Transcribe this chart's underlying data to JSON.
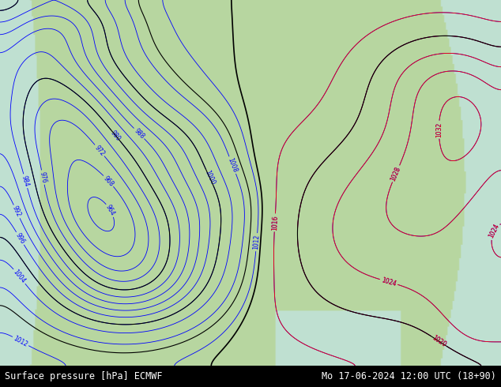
{
  "title_left": "Surface pressure [hPa] ECMWF",
  "title_right": "Mo 17-06-2024 12:00 UTC (18+90)",
  "background_color": "#ffffff",
  "label_color_left": "#000000",
  "label_color_right": "#000000",
  "label_fontsize": 9,
  "fig_width": 6.34,
  "fig_height": 4.9,
  "map_bg_color": "#b8d4a0",
  "contour_blue_color": "#0000ff",
  "contour_red_color": "#ff0000",
  "contour_black_color": "#000000",
  "sea_color": "#d0e8f8",
  "land_color": "#b8d4a0",
  "high_pressure_region_color": "#c8e8c0",
  "label_bg": "#000000"
}
